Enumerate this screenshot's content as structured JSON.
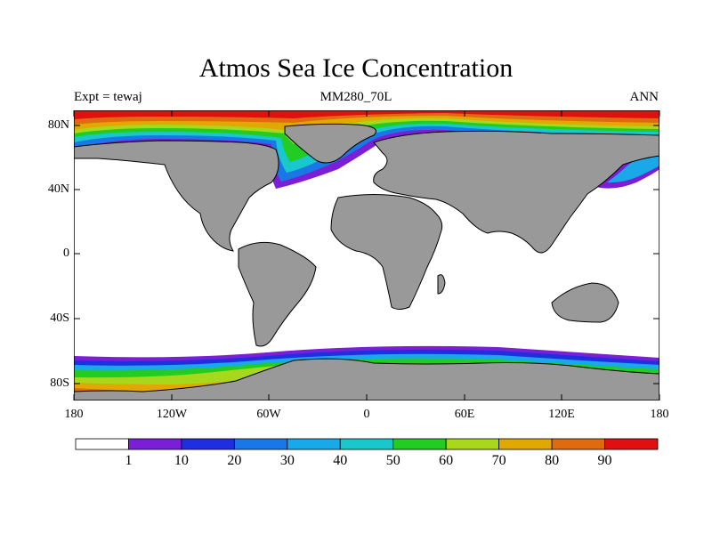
{
  "title": "Atmos Sea Ice Concentration",
  "left_label": "Expt = tewaj",
  "center_label": "MM280_70L",
  "right_label": "ANN",
  "lat_labels": [
    "80N",
    "40N",
    "0",
    "40S",
    "80S"
  ],
  "lon_labels": [
    "180",
    "120W",
    "60W",
    "0",
    "60E",
    "120E",
    "180"
  ],
  "colorbar": {
    "labels": [
      "1",
      "10",
      "20",
      "30",
      "40",
      "50",
      "60",
      "70",
      "80",
      "90"
    ],
    "colors": [
      "#ffffff",
      "#7a1fd6",
      "#1f2fe0",
      "#1a78e6",
      "#19a8e8",
      "#19c8cc",
      "#22cc22",
      "#a8d81c",
      "#e0a800",
      "#e06a10",
      "#e01010"
    ]
  },
  "colors": {
    "land": "#999999",
    "ocean": "#ffffff",
    "coast": "#000000"
  }
}
